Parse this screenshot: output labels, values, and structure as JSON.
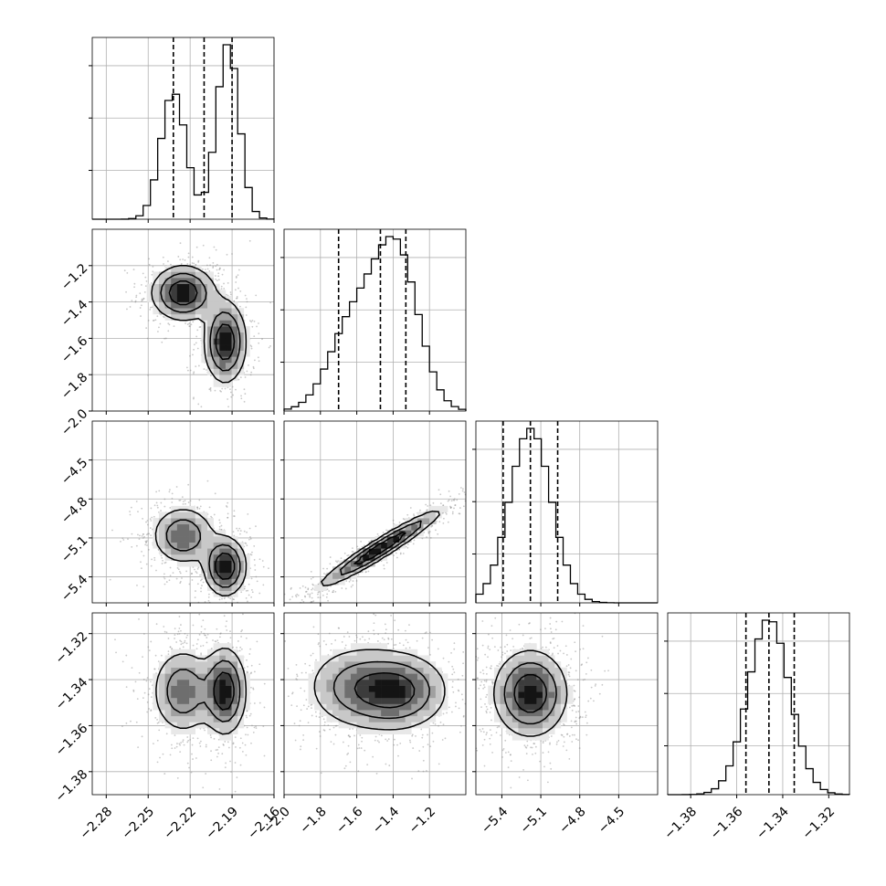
{
  "chart_data": {
    "type": "corner",
    "grid": true,
    "quantiles": [
      0.16,
      0.5,
      0.84
    ],
    "params": [
      {
        "range": [
          -2.29,
          -2.16
        ],
        "peaks": [
          {
            "mu": -2.232,
            "sigma": 0.009,
            "w": 0.45
          },
          {
            "mu": -2.193,
            "sigma": 0.008,
            "w": 0.55
          }
        ],
        "quantile_values": [
          -2.232,
          -2.21,
          -2.19
        ]
      },
      {
        "range": [
          -2.0,
          -1.0
        ],
        "peaks": [
          {
            "mu": -1.38,
            "sigma": 0.12,
            "w": 0.62
          },
          {
            "mu": -1.62,
            "sigma": 0.13,
            "w": 0.38
          }
        ],
        "quantile_values": [
          -1.7,
          -1.47,
          -1.33
        ]
      },
      {
        "range": [
          -5.6,
          -4.2
        ],
        "peaks": [
          {
            "mu": -5.18,
            "sigma": 0.16,
            "w": 1.0
          }
        ],
        "quantile_values": [
          -5.39,
          -5.18,
          -4.97
        ]
      },
      {
        "range": [
          -1.39,
          -1.311
        ],
        "peaks": [
          {
            "mu": -1.346,
            "sigma": 0.009,
            "w": 1.0
          }
        ],
        "quantile_values": [
          -1.356,
          -1.346,
          -1.335
        ]
      }
    ],
    "pairs": [
      {
        "x": 0,
        "y": 1,
        "modes": [
          {
            "mx": -2.225,
            "my": -1.35,
            "sx": 0.012,
            "sy": 0.08,
            "r": 0.0,
            "w": 0.5
          },
          {
            "mx": -2.195,
            "my": -1.62,
            "sx": 0.008,
            "sy": 0.12,
            "r": 0.0,
            "w": 0.5
          }
        ]
      },
      {
        "x": 0,
        "y": 2,
        "modes": [
          {
            "mx": -2.225,
            "my": -5.08,
            "sx": 0.012,
            "sy": 0.12,
            "r": 0.0,
            "w": 0.5
          },
          {
            "mx": -2.195,
            "my": -5.32,
            "sx": 0.008,
            "sy": 0.12,
            "r": 0.0,
            "w": 0.5
          }
        ]
      },
      {
        "x": 1,
        "y": 2,
        "modes": [
          {
            "mx": -1.47,
            "my": -5.18,
            "sx": 0.18,
            "sy": 0.16,
            "r": 0.96,
            "w": 1.0
          }
        ]
      },
      {
        "x": 0,
        "y": 3,
        "modes": [
          {
            "mx": -2.225,
            "my": -1.345,
            "sx": 0.012,
            "sy": 0.01,
            "r": 0.0,
            "w": 0.5
          },
          {
            "mx": -2.195,
            "my": -1.345,
            "sx": 0.008,
            "sy": 0.01,
            "r": 0.0,
            "w": 0.5
          }
        ]
      },
      {
        "x": 1,
        "y": 3,
        "modes": [
          {
            "mx": -1.38,
            "my": -1.345,
            "sx": 0.15,
            "sy": 0.009,
            "r": 0.0,
            "w": 0.62
          },
          {
            "mx": -1.62,
            "my": -1.343,
            "sx": 0.15,
            "sy": 0.01,
            "r": 0.0,
            "w": 0.38
          }
        ]
      },
      {
        "x": 2,
        "y": 3,
        "modes": [
          {
            "mx": -5.18,
            "my": -1.346,
            "sx": 0.15,
            "sy": 0.01,
            "r": 0.0,
            "w": 1.0
          }
        ]
      }
    ],
    "x_ticks": [
      {
        "values": [
          -2.28,
          -2.25,
          -2.22,
          -2.19,
          -2.16
        ],
        "labels": [
          "−2.28",
          "−2.25",
          "−2.22",
          "−2.19",
          "−2.16"
        ]
      },
      {
        "values": [
          -2.0,
          -1.8,
          -1.6,
          -1.4,
          -1.2
        ],
        "labels": [
          "−2.0",
          "−1.8",
          "−1.6",
          "−1.4",
          "−1.2"
        ]
      },
      {
        "values": [
          -5.4,
          -5.1,
          -4.8,
          -4.5
        ],
        "labels": [
          "−5.4",
          "−5.1",
          "−4.8",
          "−4.5"
        ]
      },
      {
        "values": [
          -1.38,
          -1.36,
          -1.34,
          -1.32
        ],
        "labels": [
          "−1.38",
          "−1.36",
          "−1.34",
          "−1.32"
        ]
      }
    ],
    "y_ticks": [
      null,
      {
        "values": [
          -2.0,
          -1.8,
          -1.6,
          -1.4,
          -1.2
        ],
        "labels": [
          "−2.0",
          "−1.8",
          "−1.6",
          "−1.4",
          "−1.2"
        ]
      },
      {
        "values": [
          -5.4,
          -5.1,
          -4.8,
          -4.5
        ],
        "labels": [
          "−5.4",
          "−5.1",
          "−4.8",
          "−4.5"
        ]
      },
      {
        "values": [
          -1.38,
          -1.36,
          -1.34,
          -1.32
        ],
        "labels": [
          "−1.38",
          "−1.36",
          "−1.34",
          "−1.32"
        ]
      }
    ]
  }
}
